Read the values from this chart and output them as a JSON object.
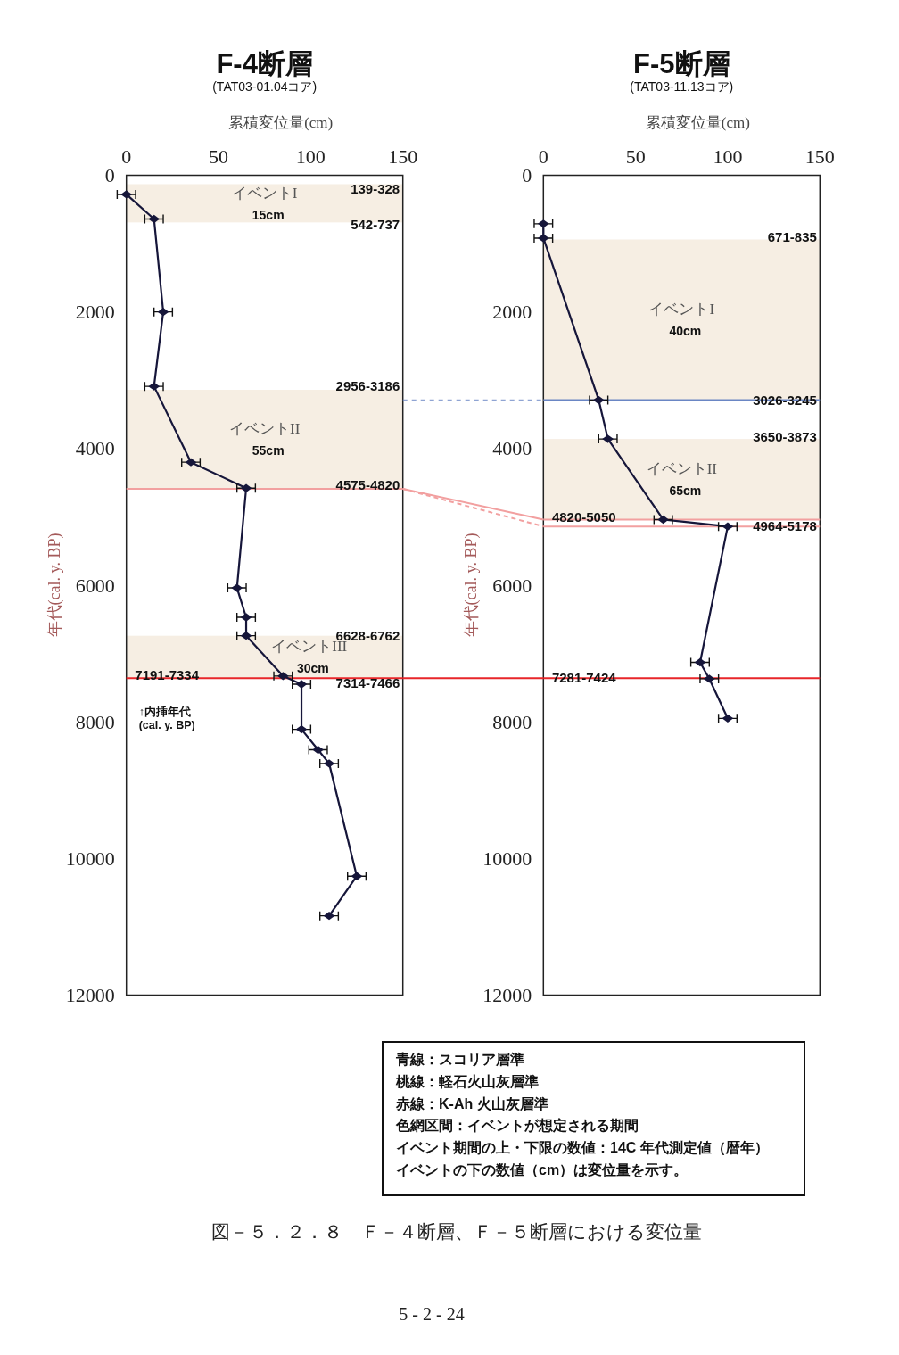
{
  "chart_data": [
    {
      "type": "line",
      "title": "F-4断層",
      "subtitle": "(TAT03-01.04コア)",
      "xlabel": "累積変位量(cm)",
      "ylabel": "年代(cal. y. BP)",
      "xlim": [
        0,
        150
      ],
      "xticks": [
        0,
        50,
        100,
        150
      ],
      "ylim": [
        12000,
        0
      ],
      "yticks": [
        0,
        2000,
        4000,
        6000,
        8000,
        10000,
        12000
      ],
      "marker": "diamond",
      "series": [
        {
          "color": "#16163a",
          "x": [
            0,
            15,
            20,
            15,
            35,
            65,
            60,
            65,
            65,
            85,
            95,
            95,
            104,
            110,
            125,
            110
          ],
          "values": [
            280,
            640,
            2000,
            3090,
            4200,
            4580,
            6040,
            6470,
            6740,
            7330,
            7450,
            8110,
            8410,
            8610,
            10260,
            10840
          ],
          "xerrors": [
            5,
            5,
            5,
            5,
            5,
            5,
            5,
            5,
            5,
            5,
            5,
            5,
            5,
            5,
            5,
            5
          ]
        }
      ],
      "bands": [
        {
          "axis": "y",
          "from": 130,
          "to": 690,
          "label": "イベントI",
          "color": "#f6eee3"
        },
        {
          "axis": "y",
          "from": 3140,
          "to": 4590,
          "label": "イベントII",
          "color": "#f6eee3"
        },
        {
          "axis": "y",
          "from": 6740,
          "to": 7360,
          "label": "イベントIII",
          "color": "#f6eee3"
        }
      ],
      "ref_lines": [
        {
          "axis": "y",
          "value": 4590,
          "color": "#f2a0a0"
        },
        {
          "axis": "y",
          "value": 7360,
          "color": "#e8262a"
        }
      ],
      "annotations": [
        "15cm",
        "55cm",
        "30cm",
        {
          "text": "139-328",
          "x": 135,
          "y": 190
        },
        {
          "text": "542-737",
          "x": 135,
          "y": 710
        },
        {
          "text": "2956-3186",
          "x": 131,
          "y": 3080
        },
        {
          "text": "4575-4820",
          "x": 131,
          "y": 4530
        },
        {
          "text": "6628-6762",
          "x": 131,
          "y": 6730
        },
        {
          "text": "7191-7334",
          "x": 22,
          "y": 7310
        },
        {
          "text": "7314-7466",
          "x": 131,
          "y": 7420
        },
        "↑内挿年代",
        "(cal. y. BP)"
      ]
    },
    {
      "type": "line",
      "title": "F-5断層",
      "subtitle": "(TAT03-11.13コア)",
      "xlabel": "累積変位量(cm)",
      "ylabel": "年代(cal. y. BP)",
      "xlim": [
        0,
        150
      ],
      "xticks": [
        0,
        50,
        100,
        150
      ],
      "ylim": [
        12000,
        0
      ],
      "yticks": [
        0,
        2000,
        4000,
        6000,
        8000,
        10000,
        12000
      ],
      "marker": "diamond",
      "series": [
        {
          "color": "#16163a",
          "x": [
            0,
            0,
            30,
            35,
            65,
            100,
            85,
            90,
            100
          ],
          "values": [
            710,
            920,
            3290,
            3860,
            5040,
            5140,
            7130,
            7370,
            7950
          ],
          "xerrors": [
            5,
            5,
            5,
            5,
            5,
            5,
            5,
            5,
            5
          ]
        }
      ],
      "bands": [
        {
          "axis": "y",
          "from": 940,
          "to": 3290,
          "label": "イベントI",
          "color": "#f6eee3"
        },
        {
          "axis": "y",
          "from": 3860,
          "to": 5040,
          "label": "イベントII",
          "color": "#f6eee3"
        }
      ],
      "ref_lines": [
        {
          "axis": "y",
          "value": 3290,
          "color": "#6a86c4"
        },
        {
          "axis": "y",
          "value": 5040,
          "color": "#f2a0a0"
        },
        {
          "axis": "y",
          "value": 5140,
          "color": "#f2a0a0"
        },
        {
          "axis": "y",
          "value": 7360,
          "color": "#e8262a"
        }
      ],
      "annotations": [
        "40cm",
        "65cm",
        {
          "text": "671-835",
          "x": 135,
          "y": 900
        },
        {
          "text": "3026-3245",
          "x": 131,
          "y": 3280
        },
        {
          "text": "3650-3873",
          "x": 131,
          "y": 3820
        },
        {
          "text": "4820-5050",
          "x": 22,
          "y": 4990
        },
        {
          "text": "4964-5178",
          "x": 131,
          "y": 5130
        },
        {
          "text": "7281-7424",
          "x": 22,
          "y": 7350
        }
      ]
    },
    {
      "type": "other",
      "annotations": [
        "青線：スコリア層準",
        "桃線：軽石火山灰層準",
        "赤線：K-Ah 火山灰層準",
        "色網区間：イベントが想定される期間",
        "イベント期間の上・下限の数値：14C 年代測定値（暦年）",
        "イベントの下の数値（cm）は変位量を示す。"
      ]
    },
    {
      "type": "other",
      "annotations": [
        "図－５．２．８　Ｆ－４断層、Ｆ－５断層における変位量",
        "5 - 2 - 24"
      ]
    }
  ]
}
